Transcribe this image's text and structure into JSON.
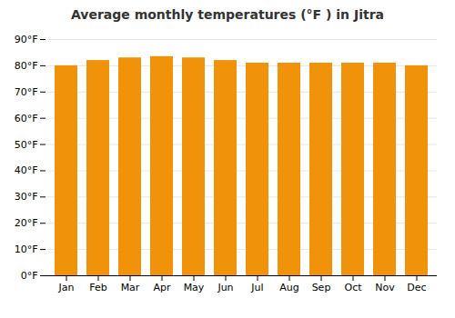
{
  "chart_data": {
    "type": "bar",
    "title": "Average monthly temperatures (°F ) in Jitra",
    "categories": [
      "Jan",
      "Feb",
      "Mar",
      "Apr",
      "May",
      "Jun",
      "Jul",
      "Aug",
      "Sep",
      "Oct",
      "Nov",
      "Dec"
    ],
    "values": [
      80,
      82,
      83,
      83.5,
      83,
      82,
      81,
      81,
      81,
      81,
      81,
      80
    ],
    "color": "#F0920A",
    "ylim": [
      0,
      90
    ],
    "yticks": [
      {
        "value": 0,
        "label": "0°F"
      },
      {
        "value": 10,
        "label": "10°F"
      },
      {
        "value": 20,
        "label": "20°F"
      },
      {
        "value": 30,
        "label": "30°F"
      },
      {
        "value": 40,
        "label": "40°F"
      },
      {
        "value": 50,
        "label": "50°F"
      },
      {
        "value": 60,
        "label": "60°F"
      },
      {
        "value": 70,
        "label": "70°F"
      },
      {
        "value": 80,
        "label": "80°F"
      },
      {
        "value": 90,
        "label": "90°F"
      }
    ],
    "grid": true
  }
}
